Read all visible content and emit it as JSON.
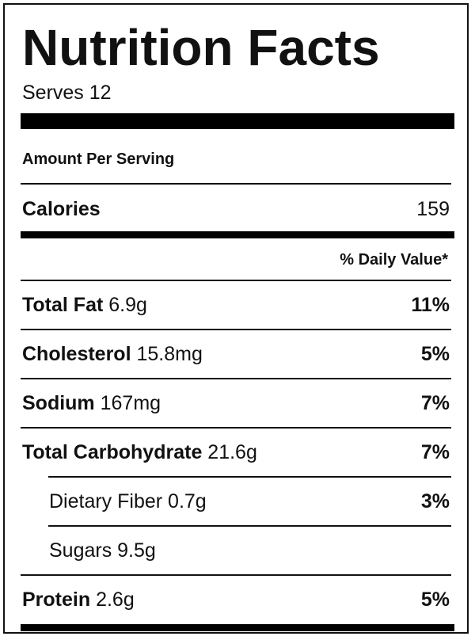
{
  "title": "Nutrition Facts",
  "serves": "Serves 12",
  "amount_per_serving": "Amount Per Serving",
  "calories": {
    "label": "Calories",
    "value": "159"
  },
  "daily_value_header": "% Daily Value*",
  "nutrients": [
    {
      "name": "Total Fat",
      "amount": "6.9g",
      "percent": "11%"
    },
    {
      "name": "Cholesterol",
      "amount": "15.8mg",
      "percent": "5%"
    },
    {
      "name": "Sodium",
      "amount": "167mg",
      "percent": "7%"
    },
    {
      "name": "Total Carbohydrate",
      "amount": "21.6g",
      "percent": "7%"
    },
    {
      "name": "Dietary Fiber 0.7g",
      "percent": "3%"
    },
    {
      "name": "Sugars 9.5g",
      "percent": ""
    },
    {
      "name": "Protein",
      "amount": "2.6g",
      "percent": "5%"
    }
  ]
}
